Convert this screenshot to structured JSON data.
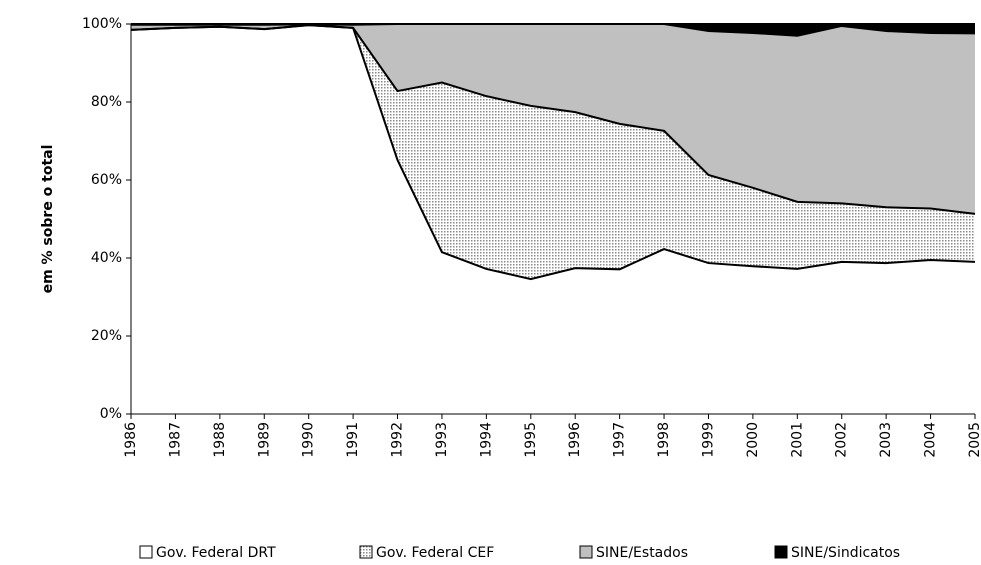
{
  "chart_data": {
    "type": "stacked_area",
    "y_label": "em % sobre o total",
    "categories": [
      "1986",
      "1987",
      "1988",
      "1989",
      "1990",
      "1991",
      "1992",
      "1993",
      "1994",
      "1995",
      "1996",
      "1997",
      "1998",
      "1999",
      "2000",
      "2001",
      "2002",
      "2003",
      "2004",
      "2005"
    ],
    "series": [
      {
        "name": "Gov. Federal DRT",
        "color": "#ffffff",
        "values": [
          98.5,
          99,
          99.3,
          98.7,
          99.7,
          99,
          65.1,
          41.5,
          37.2,
          34.6,
          37.4,
          37.1,
          42.3,
          38.7,
          37.9,
          37.2,
          39,
          38.7,
          39.5,
          39
        ]
      },
      {
        "name": "Gov. Federal CEF",
        "color": "#d0d0d0",
        "fill_pattern": "dotted",
        "values": [
          0,
          0,
          0,
          0,
          0,
          0,
          17.7,
          43.5,
          44.3,
          44.4,
          40,
          37.3,
          30.3,
          22.6,
          20.1,
          17.2,
          15,
          14.3,
          13.2,
          12.3
        ]
      },
      {
        "name": "SINE/Estados",
        "color": "#c0c0c0",
        "values": [
          1.3,
          0.8,
          0.5,
          1.1,
          0.2,
          0.8,
          17.2,
          15,
          18.5,
          21,
          22.6,
          25.6,
          27.4,
          36.9,
          39.7,
          42.6,
          45.5,
          45.2,
          45,
          46.3
        ]
      },
      {
        "name": "SINE/Sindicatos",
        "color": "#000000",
        "values": [
          0.2,
          0.2,
          0.2,
          0.2,
          0.1,
          0.2,
          0,
          0,
          0,
          0,
          0,
          0,
          0,
          1.8,
          2.3,
          3,
          0.5,
          1.8,
          2.3,
          2.4
        ]
      }
    ],
    "ylim": [
      0,
      100
    ],
    "yticks": [
      {
        "value": 0,
        "label": "0%"
      },
      {
        "value": 20,
        "label": "20%"
      },
      {
        "value": 40,
        "label": "40%"
      },
      {
        "value": 60,
        "label": "60%"
      },
      {
        "value": 80,
        "label": "80%"
      },
      {
        "value": 100,
        "label": "100%"
      }
    ],
    "legend": "bottom"
  }
}
